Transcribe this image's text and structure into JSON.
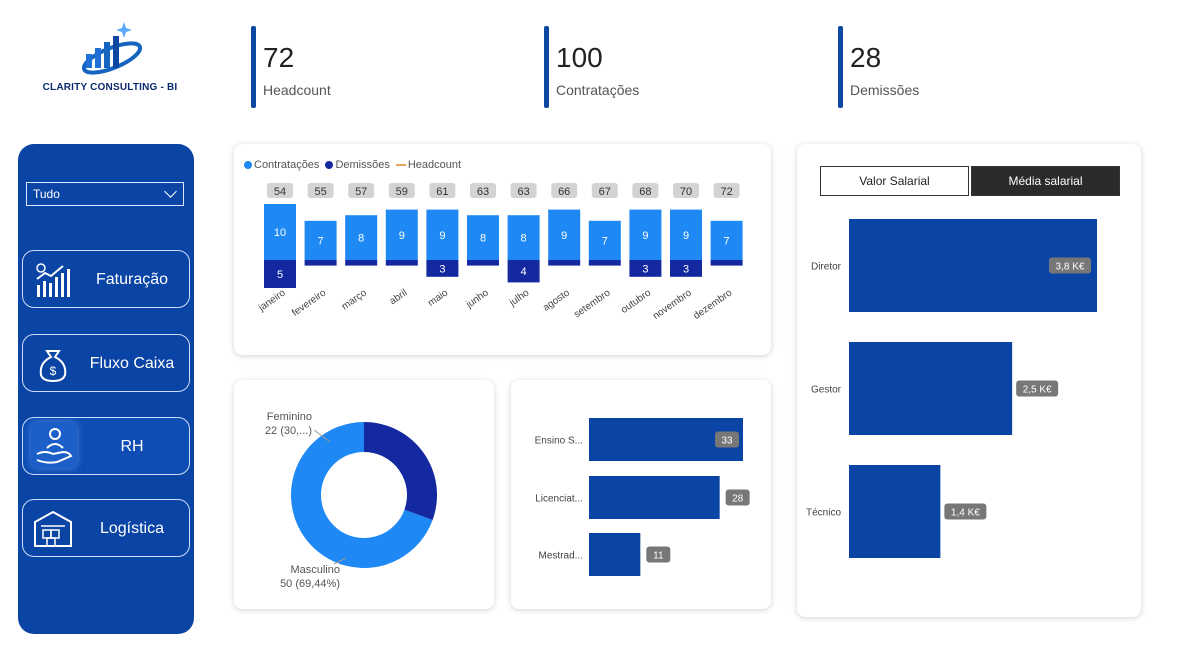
{
  "brand": {
    "name": "CLARITY CONSULTING - BI"
  },
  "kpis": [
    {
      "value": "72",
      "label": "Headcount"
    },
    {
      "value": "100",
      "label": "Contratações"
    },
    {
      "value": "28",
      "label": "Demissões"
    }
  ],
  "sidebar": {
    "filter_value": "Tudo",
    "items": [
      {
        "label": "Faturação",
        "icon": "chart-growth-icon"
      },
      {
        "label": "Fluxo Caixa",
        "icon": "money-bag-icon"
      },
      {
        "label": "RH",
        "icon": "hand-person-icon",
        "active": true
      },
      {
        "label": "Logística",
        "icon": "warehouse-icon"
      }
    ]
  },
  "colors": {
    "primary": "#0a44a4",
    "contratacoes": "#1e88f5",
    "demissoes": "#1429a0",
    "headcount": "#e8a25a",
    "bar": "#0a44a4",
    "label_bg": "#777777"
  },
  "chart_data": [
    {
      "type": "bar",
      "stacked": true,
      "legend": [
        "Contratações",
        "Demissões",
        "Headcount"
      ],
      "legend_position": "top-left",
      "categories": [
        "janeiro",
        "fevereiro",
        "março",
        "abril",
        "maio",
        "junho",
        "julho",
        "agosto",
        "setembro",
        "outubro",
        "novembro",
        "dezembro"
      ],
      "series": [
        {
          "name": "Contratações",
          "values": [
            10,
            7,
            8,
            9,
            9,
            8,
            8,
            9,
            7,
            9,
            9,
            7
          ]
        },
        {
          "name": "Demissões",
          "values": [
            5,
            1,
            1,
            1,
            3,
            1,
            4,
            1,
            1,
            3,
            3,
            1
          ]
        },
        {
          "name": "Headcount",
          "values": [
            54,
            55,
            57,
            59,
            61,
            63,
            63,
            66,
            67,
            68,
            70,
            72
          ]
        }
      ],
      "data_labels": {
        "contratacoes": [
          "10",
          "7",
          "8",
          "9",
          "9",
          "8",
          "8",
          "9",
          "7",
          "9",
          "9",
          "7"
        ],
        "demissoes": [
          "5",
          "",
          "",
          "",
          "3",
          "",
          "4",
          "",
          "",
          "3",
          "3",
          ""
        ]
      }
    },
    {
      "type": "pie",
      "donut": true,
      "slices": [
        {
          "name": "Feminino",
          "value": 22,
          "label_line1": "Feminino",
          "label_line2": "22 (30,...)"
        },
        {
          "name": "Masculino",
          "value": 50,
          "label_line1": "Masculino",
          "label_line2": "50 (69,44%)"
        }
      ]
    },
    {
      "type": "bar",
      "orientation": "horizontal",
      "categories": [
        "Ensino S...",
        "Licenciat...",
        "Mestrad..."
      ],
      "values": [
        33,
        28,
        11
      ],
      "labels": [
        "33",
        "28",
        "11"
      ]
    },
    {
      "type": "bar",
      "orientation": "horizontal",
      "tabs": [
        "Valor Salarial",
        "Média salarial"
      ],
      "selected_tab": "Média salarial",
      "categories": [
        "Diretor",
        "Gestor",
        "Técnico"
      ],
      "values": [
        3.8,
        2.5,
        1.4
      ],
      "labels": [
        "3,8 K€",
        "2,5 K€",
        "1,4 K€"
      ]
    }
  ]
}
